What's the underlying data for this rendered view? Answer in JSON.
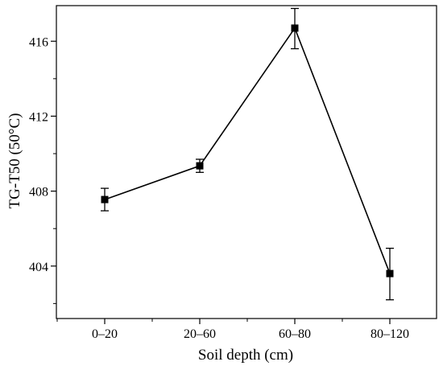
{
  "chart_data": {
    "type": "line",
    "title": "",
    "xlabel": "Soil depth (cm)",
    "ylabel": "TG-T50 (50°C)",
    "categories": [
      "0–20",
      "20–60",
      "60–80",
      "80–120"
    ],
    "series": [
      {
        "values": [
          407.55,
          409.35,
          416.7,
          403.6
        ],
        "error_low": [
          406.95,
          409.0,
          415.6,
          402.2
        ],
        "error_high": [
          408.15,
          409.7,
          417.75,
          404.95
        ]
      }
    ],
    "ylim": [
      401.2,
      417.9
    ],
    "yticks": [
      404,
      408,
      412,
      416
    ],
    "ytick_labels": [
      "404",
      "408",
      "412",
      "416"
    ],
    "grid": false,
    "legend": "none",
    "marker": "square",
    "color": "#000000"
  }
}
